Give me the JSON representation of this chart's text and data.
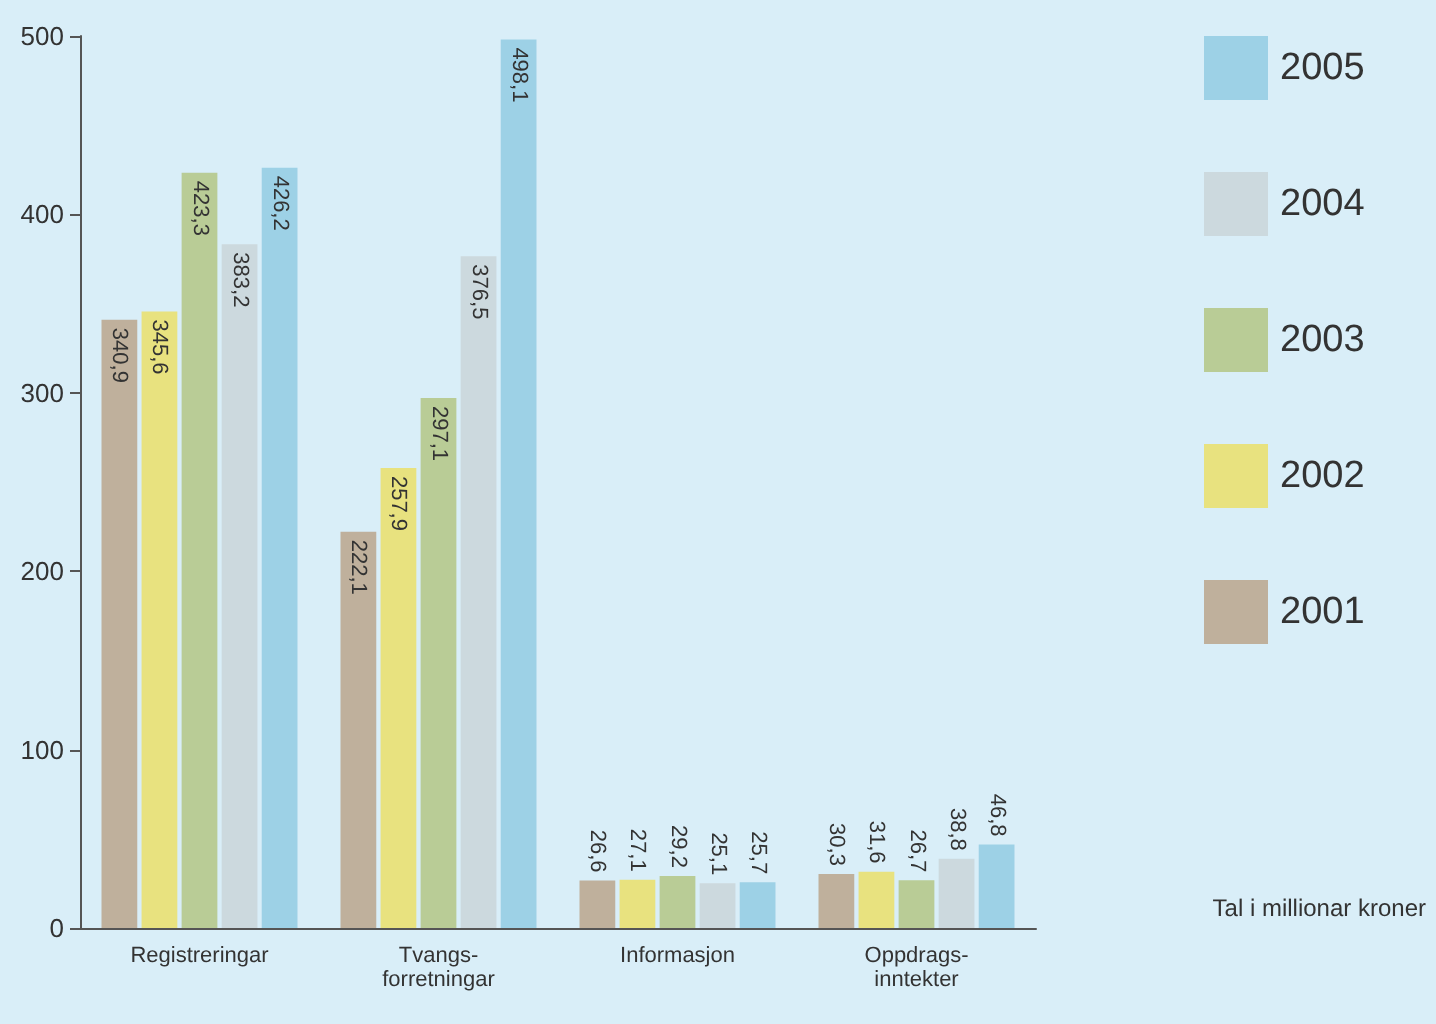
{
  "chart_data": {
    "type": "bar",
    "categories": [
      "Registreringar",
      "Tvangs-\nforretningar",
      "Informasjon",
      "Oppdrags-\ninntekter"
    ],
    "series": [
      {
        "name": "2001",
        "color": "#bfb09c",
        "values": [
          340.9,
          222.1,
          26.6,
          30.3
        ],
        "value_labels": [
          "340,9",
          "222,1",
          "26,6",
          "30,3"
        ]
      },
      {
        "name": "2002",
        "color": "#e8e27f",
        "values": [
          345.6,
          257.9,
          27.1,
          31.6
        ],
        "value_labels": [
          "345,6",
          "257,9",
          "27,1",
          "31,6"
        ]
      },
      {
        "name": "2003",
        "color": "#b9cc96",
        "values": [
          423.3,
          297.1,
          29.2,
          26.7
        ],
        "value_labels": [
          "423,3",
          "297,1",
          "29,2",
          "26,7"
        ]
      },
      {
        "name": "2004",
        "color": "#ccd9de",
        "values": [
          383.2,
          376.5,
          25.1,
          38.8
        ],
        "value_labels": [
          "383,2",
          "376,5",
          "25,1",
          "38,8"
        ]
      },
      {
        "name": "2005",
        "color": "#9dd1e6",
        "values": [
          426.2,
          498.1,
          25.7,
          46.8
        ],
        "value_labels": [
          "426,2",
          "498,1",
          "25,7",
          "46,8"
        ]
      }
    ],
    "ylim": [
      0,
      500
    ],
    "yticks": [
      0,
      100,
      200,
      300,
      400,
      500
    ],
    "grid": false,
    "legend": "right",
    "annotations": [
      "Tal i millionar kroner"
    ]
  }
}
